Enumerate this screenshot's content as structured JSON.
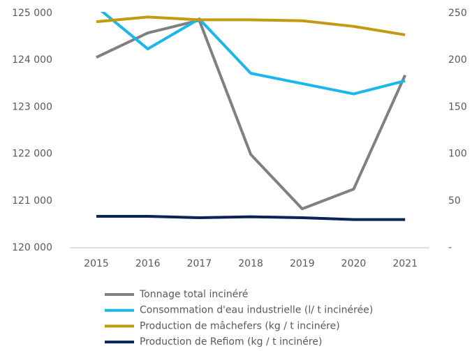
{
  "chart_data": {
    "type": "line",
    "categories": [
      "2015",
      "2016",
      "2017",
      "2018",
      "2019",
      "2020",
      "2021"
    ],
    "series": [
      {
        "name": "Tonnage total incinéré",
        "color": "#808080",
        "axis": "y",
        "values": [
          124060,
          124580,
          124850,
          121990,
          120830,
          121250,
          123680
        ]
      },
      {
        "name": "Consommation d'eau industrielle (l/ t incinérée)",
        "color": "#1ab7ea",
        "axis": "y2",
        "values": [
          257,
          212,
          244,
          186,
          175,
          164,
          178
        ]
      },
      {
        "name": "Production de mâchefers (kg / t incinére)",
        "color": "#c39a12",
        "axis": "y2",
        "values": [
          241,
          246,
          243,
          243,
          242,
          236,
          227
        ]
      },
      {
        "name": "Production de Refiom (kg / t incinére)",
        "color": "#0b2357",
        "axis": "y2",
        "values": [
          33.5,
          33.5,
          32,
          33,
          32,
          30,
          30
        ]
      }
    ],
    "ylim": [
      120000,
      125000
    ],
    "yticks": [
      {
        "value": 120000,
        "label": "120 000"
      },
      {
        "value": 121000,
        "label": "121 000"
      },
      {
        "value": 122000,
        "label": "122 000"
      },
      {
        "value": 123000,
        "label": "123 000"
      },
      {
        "value": 124000,
        "label": "124 000"
      },
      {
        "value": 125000,
        "label": "125 000"
      }
    ],
    "y2lim": [
      0,
      250
    ],
    "y2ticks": [
      {
        "value": 0,
        "label": "-"
      },
      50,
      100,
      150,
      200,
      250
    ],
    "legend": "bottom"
  }
}
